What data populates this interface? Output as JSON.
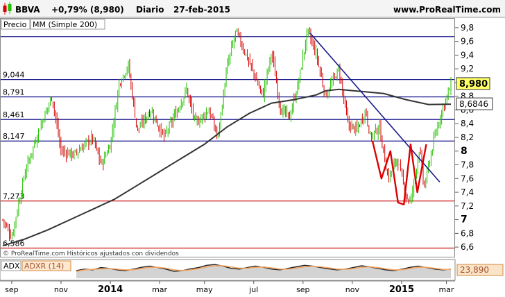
{
  "header": {
    "symbol": "BBVA",
    "change": "+0,79% (8,980)",
    "period": "Diario",
    "date": "27-feb-2015",
    "site": "www.ProRealTime.com"
  },
  "tags": {
    "price": "Precio",
    "ma": "MM (Simple 200)"
  },
  "copyright": "© ProRealTime.com  Históricos ajustados con dividendos",
  "indicator": {
    "adx_label": "ADX",
    "adxr_label": "ADXR (14)",
    "value_label": "23,890"
  },
  "colors": {
    "up": "#22c000",
    "down": "#d40000",
    "ma": "#333333",
    "resistance": "#1a1a8c",
    "support": "#cc1111",
    "wave": "#dd0000",
    "adxr": "#f4a460"
  },
  "chart_data": {
    "type": "candlestick",
    "ylim": [
      6.5,
      9.9
    ],
    "yticks": [
      {
        "v": 9.8,
        "label": "9,8"
      },
      {
        "v": 9.6,
        "label": "9,6"
      },
      {
        "v": 9.4,
        "label": "9,4"
      },
      {
        "v": 9.2,
        "label": "9,2"
      },
      {
        "v": 9.0,
        "label": "9"
      },
      {
        "v": 8.8,
        "label": "8,8"
      },
      {
        "v": 8.6,
        "label": "8,6"
      },
      {
        "v": 8.4,
        "label": "8,4"
      },
      {
        "v": 8.2,
        "label": "8,2"
      },
      {
        "v": 8.0,
        "label": "8"
      },
      {
        "v": 7.8,
        "label": "7,8"
      },
      {
        "v": 7.6,
        "label": "7,6"
      },
      {
        "v": 7.4,
        "label": "7,4"
      },
      {
        "v": 7.2,
        "label": "7,2"
      },
      {
        "v": 7.0,
        "label": "7"
      },
      {
        "v": 6.8,
        "label": "6,8"
      },
      {
        "v": 6.6,
        "label": "6,6"
      }
    ],
    "xticks": [
      {
        "label": "sep",
        "bold": false,
        "t": 0.02
      },
      {
        "label": "nov",
        "bold": false,
        "t": 0.13
      },
      {
        "label": "2014",
        "bold": true,
        "t": 0.24
      },
      {
        "label": "mar",
        "bold": false,
        "t": 0.35
      },
      {
        "label": "may",
        "bold": false,
        "t": 0.45
      },
      {
        "label": "jul",
        "bold": false,
        "t": 0.56
      },
      {
        "label": "sep",
        "bold": false,
        "t": 0.67
      },
      {
        "label": "nov",
        "bold": false,
        "t": 0.78
      },
      {
        "label": "2015",
        "bold": true,
        "t": 0.89
      },
      {
        "label": "mar",
        "bold": false,
        "t": 0.99
      }
    ],
    "price_path": [
      [
        0.0,
        7.0
      ],
      [
        0.02,
        6.75
      ],
      [
        0.05,
        7.7
      ],
      [
        0.08,
        8.3
      ],
      [
        0.11,
        8.8
      ],
      [
        0.13,
        8.0
      ],
      [
        0.16,
        7.95
      ],
      [
        0.2,
        8.2
      ],
      [
        0.22,
        7.8
      ],
      [
        0.24,
        8.1
      ],
      [
        0.26,
        9.0
      ],
      [
        0.28,
        9.25
      ],
      [
        0.3,
        8.3
      ],
      [
        0.33,
        8.6
      ],
      [
        0.36,
        8.2
      ],
      [
        0.39,
        8.6
      ],
      [
        0.41,
        8.9
      ],
      [
        0.43,
        8.4
      ],
      [
        0.46,
        8.6
      ],
      [
        0.48,
        8.2
      ],
      [
        0.5,
        9.2
      ],
      [
        0.52,
        9.75
      ],
      [
        0.55,
        9.3
      ],
      [
        0.58,
        8.8
      ],
      [
        0.6,
        9.45
      ],
      [
        0.62,
        8.6
      ],
      [
        0.64,
        8.5
      ],
      [
        0.66,
        9.0
      ],
      [
        0.68,
        9.75
      ],
      [
        0.7,
        9.4
      ],
      [
        0.72,
        8.8
      ],
      [
        0.75,
        9.2
      ],
      [
        0.77,
        8.4
      ],
      [
        0.79,
        8.3
      ],
      [
        0.81,
        8.6
      ],
      [
        0.82,
        8.2
      ],
      [
        0.84,
        8.35
      ],
      [
        0.86,
        7.6
      ],
      [
        0.88,
        7.9
      ],
      [
        0.9,
        7.35
      ],
      [
        0.91,
        7.25
      ],
      [
        0.93,
        8.05
      ],
      [
        0.94,
        7.45
      ],
      [
        0.96,
        8.1
      ],
      [
        0.98,
        8.6
      ],
      [
        1.0,
        8.95
      ]
    ],
    "moving_average": [
      [
        0.0,
        6.62
      ],
      [
        0.05,
        6.72
      ],
      [
        0.1,
        6.85
      ],
      [
        0.15,
        7.0
      ],
      [
        0.2,
        7.15
      ],
      [
        0.25,
        7.3
      ],
      [
        0.3,
        7.5
      ],
      [
        0.35,
        7.7
      ],
      [
        0.4,
        7.9
      ],
      [
        0.45,
        8.1
      ],
      [
        0.5,
        8.35
      ],
      [
        0.55,
        8.55
      ],
      [
        0.6,
        8.7
      ],
      [
        0.65,
        8.75
      ],
      [
        0.7,
        8.82
      ],
      [
        0.72,
        8.88
      ],
      [
        0.75,
        8.9
      ],
      [
        0.8,
        8.87
      ],
      [
        0.85,
        8.84
      ],
      [
        0.9,
        8.75
      ],
      [
        0.95,
        8.68
      ],
      [
        1.0,
        8.685
      ]
    ],
    "horizontal_levels": [
      {
        "value": 9.67,
        "label": "",
        "color": "resistance"
      },
      {
        "value": 9.044,
        "label": "9,044",
        "color": "resistance"
      },
      {
        "value": 8.791,
        "label": "8,791",
        "color": "resistance"
      },
      {
        "value": 8.461,
        "label": "8,461",
        "color": "resistance"
      },
      {
        "value": 8.147,
        "label": "8,147",
        "color": "resistance"
      },
      {
        "value": 7.273,
        "label": "7,273",
        "color": "support"
      },
      {
        "value": 6.586,
        "label": "6,586",
        "color": "support"
      }
    ],
    "trendline": [
      [
        0.686,
        9.72
      ],
      [
        0.975,
        7.55
      ]
    ],
    "wave_path": [
      [
        0.825,
        8.15
      ],
      [
        0.845,
        7.6
      ],
      [
        0.865,
        8.0
      ],
      [
        0.882,
        7.25
      ],
      [
        0.895,
        7.22
      ],
      [
        0.91,
        8.1
      ],
      [
        0.925,
        7.4
      ],
      [
        0.945,
        8.1
      ]
    ],
    "price_badge": {
      "value": 8.98,
      "label": "8,980"
    },
    "ma_badge": {
      "value": 8.6846,
      "label": "8,6846"
    },
    "adx_series": [
      0.5,
      0.6,
      0.55,
      0.7,
      0.65,
      0.55,
      0.5,
      0.6,
      0.72,
      0.8,
      0.7,
      0.6,
      0.45,
      0.5,
      0.62,
      0.7,
      0.85,
      0.9,
      0.8,
      0.65,
      0.6,
      0.7,
      0.8,
      0.72,
      0.6,
      0.55,
      0.65,
      0.75,
      0.85,
      0.8,
      0.7,
      0.62,
      0.55,
      0.6,
      0.7,
      0.82,
      0.75,
      0.65,
      0.55,
      0.5,
      0.6,
      0.72,
      0.8,
      0.7,
      0.6,
      0.55,
      0.6
    ],
    "adxr_series": [
      0.45,
      0.55,
      0.58,
      0.62,
      0.64,
      0.6,
      0.55,
      0.56,
      0.63,
      0.72,
      0.72,
      0.66,
      0.55,
      0.5,
      0.55,
      0.63,
      0.74,
      0.82,
      0.82,
      0.74,
      0.66,
      0.66,
      0.72,
      0.74,
      0.68,
      0.6,
      0.6,
      0.66,
      0.75,
      0.78,
      0.75,
      0.68,
      0.6,
      0.58,
      0.63,
      0.73,
      0.75,
      0.7,
      0.62,
      0.55,
      0.56,
      0.64,
      0.73,
      0.72,
      0.65,
      0.58,
      0.58
    ]
  }
}
